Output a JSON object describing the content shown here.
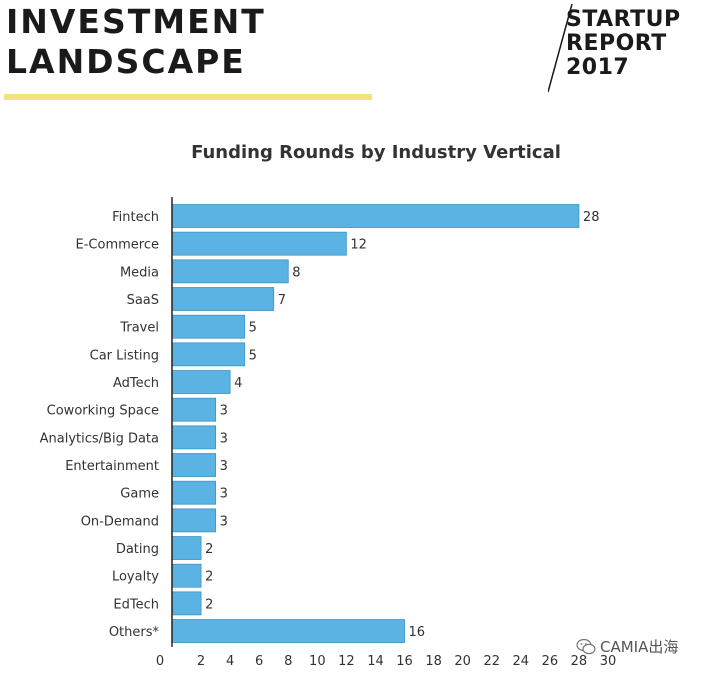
{
  "header": {
    "title_line1": "INVESTMENT",
    "title_line2": "LANDSCAPE"
  },
  "report": {
    "line1": "STARTUP",
    "line2": "REPORT",
    "line3": "2017"
  },
  "watermark": {
    "text": "CAMIA出海",
    "icon": "wechat-icon"
  },
  "colors": {
    "bar": "#5bb3e3",
    "bar_stroke": "#3f93c4",
    "accent_yellow": "#f5e27a"
  },
  "chart_data": {
    "type": "bar",
    "orientation": "horizontal",
    "title": "Funding Rounds by Industry Vertical",
    "xlabel": "",
    "ylabel": "",
    "categories": [
      "Fintech",
      "E-Commerce",
      "Media",
      "SaaS",
      "Travel",
      "Car Listing",
      "AdTech",
      "Coworking Space",
      "Analytics/Big Data",
      "Entertainment",
      "Game",
      "On-Demand",
      "Dating",
      "Loyalty",
      "EdTech",
      "Others*"
    ],
    "values": [
      28,
      12,
      8,
      7,
      5,
      5,
      4,
      3,
      3,
      3,
      3,
      3,
      2,
      2,
      2,
      16
    ],
    "xlim": [
      0,
      30
    ],
    "xticks": [
      0,
      2,
      4,
      6,
      8,
      10,
      12,
      14,
      16,
      18,
      20,
      22,
      24,
      26,
      28,
      30
    ],
    "grid": false,
    "legend": "none"
  }
}
